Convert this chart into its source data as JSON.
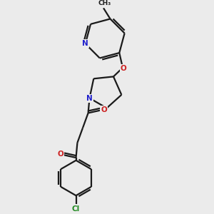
{
  "bg_color": "#ebebeb",
  "bond_color": "#1a1a1a",
  "N_color": "#2020cc",
  "O_color": "#cc2020",
  "Cl_color": "#228B22",
  "line_width": 1.6,
  "font_size": 7.5,
  "figsize": [
    3.0,
    3.0
  ],
  "dpi": 100,
  "xlim": [
    0.3,
    2.2
  ],
  "ylim": [
    0.05,
    3.05
  ]
}
